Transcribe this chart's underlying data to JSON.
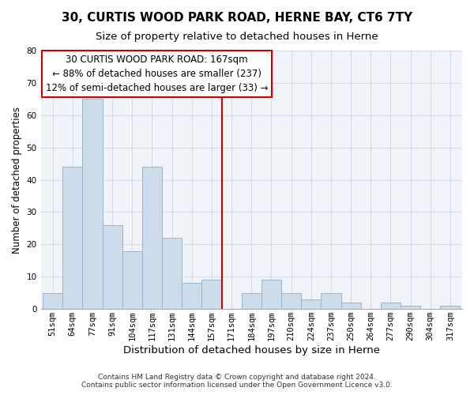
{
  "title": "30, CURTIS WOOD PARK ROAD, HERNE BAY, CT6 7TY",
  "subtitle": "Size of property relative to detached houses in Herne",
  "xlabel": "Distribution of detached houses by size in Herne",
  "ylabel": "Number of detached properties",
  "bin_labels": [
    "51sqm",
    "64sqm",
    "77sqm",
    "91sqm",
    "104sqm",
    "117sqm",
    "131sqm",
    "144sqm",
    "157sqm",
    "171sqm",
    "184sqm",
    "197sqm",
    "210sqm",
    "224sqm",
    "237sqm",
    "250sqm",
    "264sqm",
    "277sqm",
    "290sqm",
    "304sqm",
    "317sqm"
  ],
  "bar_heights": [
    5,
    44,
    65,
    26,
    18,
    44,
    22,
    8,
    9,
    0,
    5,
    9,
    5,
    3,
    5,
    2,
    0,
    2,
    1,
    0,
    1
  ],
  "bar_color": "#ccdcea",
  "bar_edge_color": "#9ab4cc",
  "vline_color": "#cc0000",
  "annotation_text": "30 CURTIS WOOD PARK ROAD: 167sqm\n← 88% of detached houses are smaller (237)\n12% of semi-detached houses are larger (33) →",
  "annotation_box_color": "#ffffff",
  "annotation_box_edge_color": "#cc0000",
  "ylim": [
    0,
    80
  ],
  "yticks": [
    0,
    10,
    20,
    30,
    40,
    50,
    60,
    70,
    80
  ],
  "footer1": "Contains HM Land Registry data © Crown copyright and database right 2024.",
  "footer2": "Contains public sector information licensed under the Open Government Licence v3.0.",
  "title_fontsize": 11,
  "subtitle_fontsize": 9.5,
  "xlabel_fontsize": 9.5,
  "ylabel_fontsize": 8.5,
  "tick_fontsize": 7.5,
  "annotation_fontsize": 8.5,
  "footer_fontsize": 6.5,
  "grid_color": "#d8d8e8",
  "bg_color": "#f0f4f8"
}
